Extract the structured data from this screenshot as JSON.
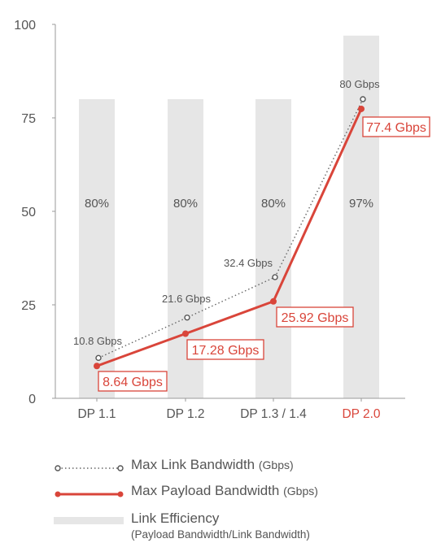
{
  "chart_data": {
    "type": "bar",
    "categories": [
      "DP 1.1",
      "DP 1.2",
      "DP 1.3 / 1.4",
      "DP 2.0"
    ],
    "category_colors": [
      "#555555",
      "#555555",
      "#555555",
      "#d9453a"
    ],
    "ylim": [
      0,
      100
    ],
    "y_ticks": [
      0,
      25,
      50,
      75,
      100
    ],
    "grid": false,
    "series": [
      {
        "name": "Link Efficiency",
        "kind": "bar",
        "values": [
          80,
          80,
          80,
          97
        ],
        "labels": [
          "80%",
          "80%",
          "80%",
          "97%"
        ],
        "color": "#e6e6e6"
      },
      {
        "name": "Max Link Bandwidth",
        "kind": "line",
        "style": "dotted",
        "values": [
          10.8,
          21.6,
          32.4,
          80
        ],
        "labels": [
          "10.8 Gbps",
          "21.6 Gbps",
          "32.4 Gbps",
          "80 Gbps"
        ],
        "color": "#666666"
      },
      {
        "name": "Max Payload Bandwidth",
        "kind": "line",
        "style": "solid",
        "values": [
          8.64,
          17.28,
          25.92,
          77.4
        ],
        "labels": [
          "8.64 Gbps",
          "17.28 Gbps",
          "25.92 Gbps",
          "77.4 Gbps"
        ],
        "color": "#d9453a"
      }
    ]
  },
  "legend": {
    "link_bw": {
      "label": "Max Link Bandwidth",
      "unit": "(Gbps)"
    },
    "payload_bw": {
      "label": "Max Payload Bandwidth",
      "unit": "(Gbps)"
    },
    "efficiency": {
      "label": "Link Efficiency",
      "sub": "(Payload Bandwidth/Link Bandwidth)"
    }
  }
}
